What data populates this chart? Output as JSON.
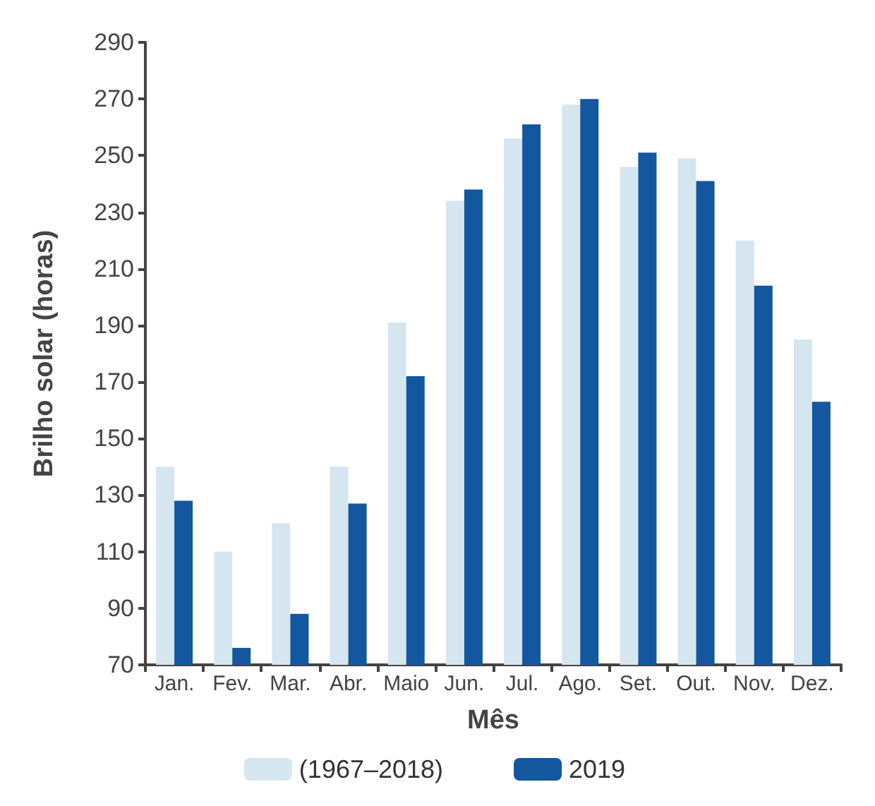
{
  "chart_data": {
    "type": "bar",
    "xlabel": "Mês",
    "ylabel": "Brilho solar (horas)",
    "categories": [
      "Jan.",
      "Fev.",
      "Mar.",
      "Abr.",
      "Maio",
      "Jun.",
      "Jul.",
      "Ago.",
      "Set.",
      "Out.",
      "Nov.",
      "Dez."
    ],
    "series": [
      {
        "name": "(1967–2018)",
        "color": "#d6e6f0",
        "values": [
          140,
          110,
          120,
          140,
          191,
          234,
          256,
          268,
          246,
          249,
          220,
          185
        ]
      },
      {
        "name": "2019",
        "color": "#13579f",
        "values": [
          128,
          76,
          88,
          127,
          172,
          238,
          261,
          270,
          251,
          241,
          204,
          163
        ]
      }
    ],
    "ylim": [
      70,
      290
    ],
    "yticks": [
      70,
      90,
      110,
      130,
      150,
      170,
      190,
      210,
      230,
      250,
      270,
      290
    ],
    "grid": false,
    "legend": "bottom"
  }
}
